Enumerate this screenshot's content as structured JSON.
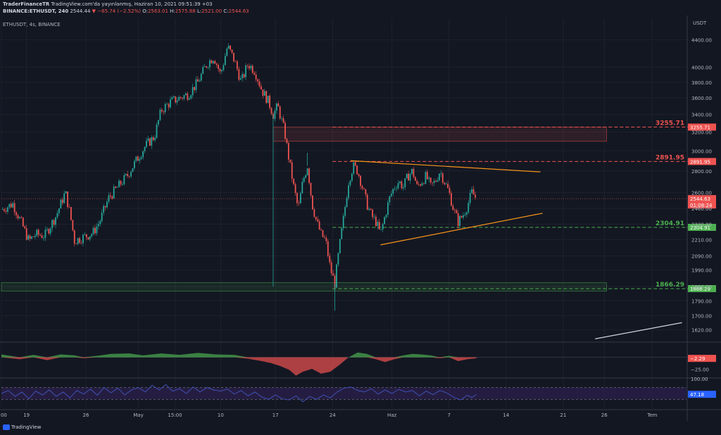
{
  "header": {
    "publisher": "TraderFinanceTR",
    "published_text": "TradingView.com'da yayınlanmış, Haziran 10, 2021 09:51:39 +03",
    "symbol_line": "BINANCE:ETHUSDT, 240",
    "price": "2544.44",
    "change": "▼ −65.74 (−2.52%)",
    "o_label": "O:",
    "o_value": "2563.01",
    "h_label": "H:",
    "h_value": "2575.88",
    "l_label": "L:",
    "l_value": "2521.00",
    "c_label": "C:",
    "c_value": "2544.63"
  },
  "pane_label": "ETHUSDT, 4s, BINANCE",
  "currency_label": "USDT",
  "footer_logo": "TradingView",
  "colors": {
    "background": "#131722",
    "bull": "#26a69a",
    "bear": "#ef5350",
    "resistance": "#ef5350",
    "support": "#4caf50",
    "trendline": "#f7931a",
    "osc_pos": "#4caf50",
    "osc_neg": "#ef5350",
    "rsi_line": "#3f51b5",
    "rsi_band": "#2a1f4a"
  },
  "chart_data": [
    {
      "type": "line",
      "title": "",
      "ylim": [
        1560,
        4600
      ],
      "y_scale": "log",
      "y_ticks": [
        1620,
        1700,
        1790,
        1880,
        1990,
        2090,
        2210,
        2330,
        2460,
        2600,
        2800,
        3000,
        3200,
        3400,
        3600,
        3800,
        4000,
        4400
      ],
      "y_tick_labels": [
        "1620.00",
        "1700.00",
        "1790.00",
        "1880.00",
        "1990.00",
        "2090.00",
        "2210.00",
        "2330.00",
        "2460.00",
        "2600.00",
        "2800.00",
        "3000.00",
        "3200.00",
        "3400.00",
        "3600.00",
        "3800.00",
        "4000.00",
        "4400.00"
      ],
      "x_ticks": [
        {
          "label": "0:00",
          "t": 0
        },
        {
          "label": "19",
          "t": 11
        },
        {
          "label": "26",
          "t": 37
        },
        {
          "label": "May",
          "t": 60
        },
        {
          "label": "15:00",
          "t": 76
        },
        {
          "label": "10",
          "t": 96
        },
        {
          "label": "17",
          "t": 120
        },
        {
          "label": "24",
          "t": 145
        },
        {
          "label": "Haz",
          "t": 171
        },
        {
          "label": "7",
          "t": 196
        },
        {
          "label": "14",
          "t": 221
        },
        {
          "label": "21",
          "t": 246
        },
        {
          "label": "26",
          "t": 264
        },
        {
          "label": "Tem",
          "t": 285
        }
      ],
      "price_path": [
        [
          0,
          2450
        ],
        [
          5,
          2500
        ],
        [
          9,
          2330
        ],
        [
          12,
          2200
        ],
        [
          15,
          2250
        ],
        [
          19,
          2240
        ],
        [
          24,
          2400
        ],
        [
          28,
          2600
        ],
        [
          30,
          2420
        ],
        [
          32,
          2200
        ],
        [
          36,
          2230
        ],
        [
          40,
          2260
        ],
        [
          43,
          2350
        ],
        [
          47,
          2550
        ],
        [
          51,
          2650
        ],
        [
          55,
          2750
        ],
        [
          59,
          2900
        ],
        [
          63,
          3050
        ],
        [
          67,
          3150
        ],
        [
          70,
          3450
        ],
        [
          74,
          3550
        ],
        [
          78,
          3600
        ],
        [
          82,
          3650
        ],
        [
          86,
          3800
        ],
        [
          90,
          4050
        ],
        [
          93,
          4150
        ],
        [
          96,
          3900
        ],
        [
          99,
          4300
        ],
        [
          102,
          4100
        ],
        [
          105,
          3800
        ],
        [
          108,
          4050
        ],
        [
          111,
          3950
        ],
        [
          114,
          3700
        ],
        [
          117,
          3550
        ],
        [
          119,
          3400
        ],
        [
          121,
          3500
        ],
        [
          124,
          3200
        ],
        [
          126,
          2900
        ],
        [
          128,
          2650
        ],
        [
          130,
          2450
        ],
        [
          132,
          2700
        ],
        [
          134,
          2850
        ],
        [
          136,
          2500
        ],
        [
          138,
          2350
        ],
        [
          140,
          2250
        ],
        [
          142,
          2200
        ],
        [
          144,
          2000
        ],
        [
          146,
          1900
        ],
        [
          148,
          2150
        ],
        [
          150,
          2400
        ],
        [
          152,
          2700
        ],
        [
          154,
          2850
        ],
        [
          156,
          2800
        ],
        [
          158,
          2650
        ],
        [
          160,
          2500
        ],
        [
          162,
          2400
        ],
        [
          164,
          2350
        ],
        [
          166,
          2250
        ],
        [
          168,
          2400
        ],
        [
          170,
          2550
        ],
        [
          172,
          2650
        ],
        [
          174,
          2700
        ],
        [
          176,
          2650
        ],
        [
          178,
          2750
        ],
        [
          180,
          2800
        ],
        [
          182,
          2650
        ],
        [
          184,
          2700
        ],
        [
          186,
          2750
        ],
        [
          188,
          2650
        ],
        [
          190,
          2700
        ],
        [
          192,
          2800
        ],
        [
          194,
          2700
        ],
        [
          196,
          2600
        ],
        [
          198,
          2450
        ],
        [
          200,
          2350
        ],
        [
          202,
          2400
        ],
        [
          204,
          2480
        ],
        [
          206,
          2600
        ],
        [
          208,
          2544
        ]
      ],
      "levels": [
        {
          "value": 3255.71,
          "label": "3255.71",
          "kind": "resistance"
        },
        {
          "value": 2891.95,
          "label": "2891.95",
          "kind": "resistance"
        },
        {
          "value": 2304.91,
          "label": "2304.91",
          "kind": "support"
        },
        {
          "value": 1866.29,
          "label": "1866.29",
          "kind": "support"
        }
      ],
      "current_price": {
        "value": 2544.63,
        "label": "2544.63",
        "countdown": "01:08:24"
      },
      "zones": [
        {
          "kind": "resistance",
          "t0": 119,
          "t1": 265,
          "low": 3100,
          "high": 3255
        },
        {
          "kind": "support",
          "t0": 0,
          "t1": 265,
          "low": 1850,
          "high": 1905
        }
      ],
      "trendlines": [
        {
          "t0": 153,
          "v0": 2900,
          "t1": 236,
          "v1": 2790
        },
        {
          "t0": 166,
          "v0": 2170,
          "t1": 237,
          "v1": 2420
        },
        {
          "t0": 260,
          "v0": 1570,
          "t1": 298,
          "v1": 1660,
          "color": "#d1d4dc"
        }
      ]
    },
    {
      "type": "area",
      "title": "",
      "ylim": [
        -40,
        30
      ],
      "y_ticks": [
        -25
      ],
      "y_tick_labels": [
        "−25.00"
      ],
      "last_value_label": "−2.29",
      "values": [
        [
          0,
          6
        ],
        [
          8,
          -4
        ],
        [
          14,
          5
        ],
        [
          20,
          -6
        ],
        [
          26,
          6
        ],
        [
          32,
          4
        ],
        [
          36,
          -2
        ],
        [
          42,
          3
        ],
        [
          48,
          7
        ],
        [
          56,
          8
        ],
        [
          62,
          4
        ],
        [
          70,
          8
        ],
        [
          78,
          5
        ],
        [
          86,
          9
        ],
        [
          94,
          6
        ],
        [
          102,
          5
        ],
        [
          108,
          -3
        ],
        [
          114,
          -8
        ],
        [
          118,
          -12
        ],
        [
          122,
          -18
        ],
        [
          126,
          -26
        ],
        [
          129,
          -38
        ],
        [
          132,
          -30
        ],
        [
          136,
          -24
        ],
        [
          140,
          -34
        ],
        [
          144,
          -30
        ],
        [
          148,
          -16
        ],
        [
          152,
          0
        ],
        [
          156,
          10
        ],
        [
          160,
          7
        ],
        [
          164,
          -4
        ],
        [
          168,
          -10
        ],
        [
          172,
          -4
        ],
        [
          176,
          4
        ],
        [
          180,
          7
        ],
        [
          184,
          6
        ],
        [
          188,
          4
        ],
        [
          192,
          -2
        ],
        [
          196,
          3
        ],
        [
          200,
          -8
        ],
        [
          204,
          -4
        ],
        [
          208,
          -2
        ]
      ]
    },
    {
      "type": "line",
      "title": "",
      "ylim": [
        0,
        100
      ],
      "y_ticks": [
        100
      ],
      "y_tick_labels": [
        "100.00"
      ],
      "last_value_label": "47.18",
      "values": [
        [
          0,
          50
        ],
        [
          3,
          60
        ],
        [
          6,
          40
        ],
        [
          9,
          55
        ],
        [
          12,
          32
        ],
        [
          15,
          58
        ],
        [
          18,
          45
        ],
        [
          21,
          62
        ],
        [
          24,
          40
        ],
        [
          27,
          55
        ],
        [
          30,
          35
        ],
        [
          33,
          60
        ],
        [
          36,
          48
        ],
        [
          39,
          65
        ],
        [
          42,
          44
        ],
        [
          45,
          70
        ],
        [
          48,
          52
        ],
        [
          51,
          68
        ],
        [
          54,
          45
        ],
        [
          57,
          62
        ],
        [
          60,
          70
        ],
        [
          63,
          55
        ],
        [
          66,
          78
        ],
        [
          69,
          62
        ],
        [
          72,
          80
        ],
        [
          75,
          58
        ],
        [
          78,
          66
        ],
        [
          81,
          50
        ],
        [
          84,
          72
        ],
        [
          87,
          55
        ],
        [
          90,
          70
        ],
        [
          93,
          62
        ],
        [
          96,
          58
        ],
        [
          99,
          65
        ],
        [
          102,
          48
        ],
        [
          105,
          60
        ],
        [
          108,
          42
        ],
        [
          111,
          55
        ],
        [
          114,
          38
        ],
        [
          117,
          30
        ],
        [
          120,
          45
        ],
        [
          123,
          32
        ],
        [
          126,
          28
        ],
        [
          129,
          42
        ],
        [
          132,
          22
        ],
        [
          135,
          40
        ],
        [
          138,
          30
        ],
        [
          141,
          45
        ],
        [
          144,
          35
        ],
        [
          147,
          55
        ],
        [
          150,
          68
        ],
        [
          153,
          72
        ],
        [
          156,
          60
        ],
        [
          159,
          55
        ],
        [
          162,
          66
        ],
        [
          165,
          48
        ],
        [
          168,
          62
        ],
        [
          171,
          50
        ],
        [
          174,
          64
        ],
        [
          177,
          55
        ],
        [
          180,
          60
        ],
        [
          183,
          42
        ],
        [
          186,
          58
        ],
        [
          189,
          46
        ],
        [
          192,
          60
        ],
        [
          195,
          52
        ],
        [
          198,
          38
        ],
        [
          201,
          28
        ],
        [
          204,
          44
        ],
        [
          206,
          36
        ],
        [
          208,
          47
        ]
      ]
    }
  ]
}
